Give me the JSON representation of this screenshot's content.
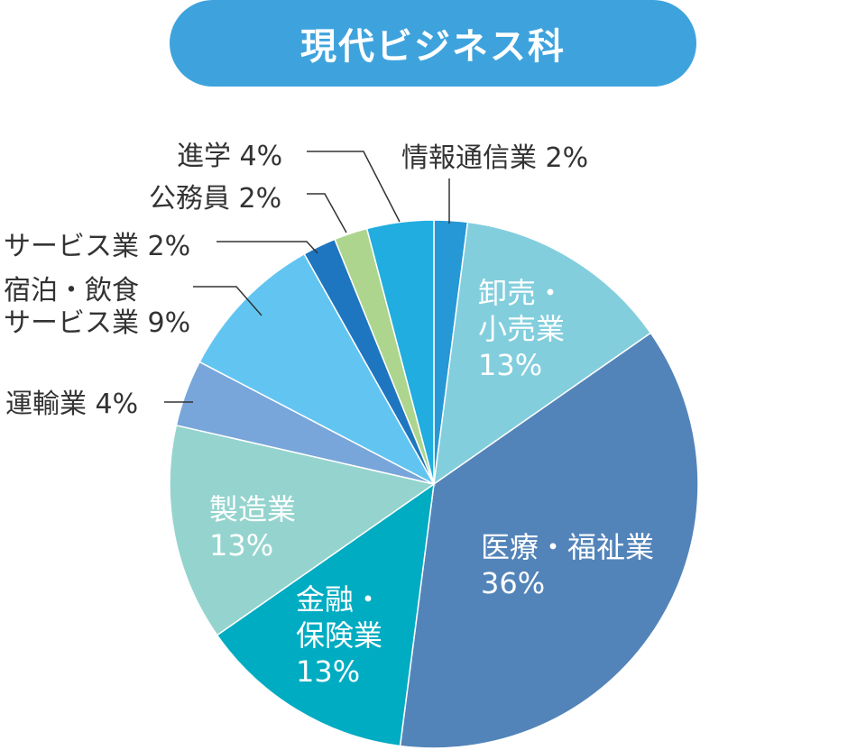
{
  "chart_data": {
    "type": "pie",
    "title": "現代ビジネス科",
    "start_angle_deg": 0,
    "direction": "clockwise",
    "slices": [
      {
        "label": "情報通信業",
        "value": 2,
        "display": "2%",
        "color": "#2698d6",
        "label_mode": "outside"
      },
      {
        "label": "卸売・小売業",
        "value": 13,
        "display": "13%",
        "color": "#82cedd",
        "label_mode": "inside"
      },
      {
        "label": "医療・福祉業",
        "value": 36,
        "display": "36%",
        "color": "#5384b9",
        "label_mode": "inside"
      },
      {
        "label": "金融・保険業",
        "value": 13,
        "display": "13%",
        "color": "#00acc2",
        "label_mode": "inside"
      },
      {
        "label": "製造業",
        "value": 13,
        "display": "13%",
        "color": "#95d4ce",
        "label_mode": "inside"
      },
      {
        "label": "運輸業",
        "value": 4,
        "display": "4%",
        "color": "#78a6da",
        "label_mode": "outside"
      },
      {
        "label": "宿泊・飲食サービス業",
        "value": 9,
        "display": "9%",
        "color": "#62c5f1",
        "label_mode": "outside"
      },
      {
        "label": "サービス業",
        "value": 2,
        "display": "2%",
        "color": "#1f76c0",
        "label_mode": "outside"
      },
      {
        "label": "公務員",
        "value": 2,
        "display": "2%",
        "color": "#add58e",
        "label_mode": "outside"
      },
      {
        "label": "進学",
        "value": 4,
        "display": "4%",
        "color": "#21ade0",
        "label_mode": "outside"
      }
    ],
    "inside_label_lines": {
      "卸売・小売業": [
        "卸売・",
        "小売業",
        "13%"
      ],
      "医療・福祉業": [
        "医療・福祉業",
        "36%"
      ],
      "金融・保険業": [
        "金融・",
        "保険業",
        "13%"
      ],
      "製造業": [
        "製造業",
        "13%"
      ]
    },
    "outside_label_lines": {
      "情報通信業": [
        "情報通信業 2%"
      ],
      "運輸業": [
        "運輸業 4%"
      ],
      "宿泊・飲食サービス業": [
        "宿泊・飲食",
        "サービス業 9%"
      ],
      "サービス業": [
        "サービス業 2%"
      ],
      "公務員": [
        "公務員 2%"
      ],
      "進学": [
        "進学 4%"
      ]
    },
    "colors": {
      "title_pill": "#3ea3dd",
      "title_text": "#ffffff",
      "inside_text": "#ffffff",
      "label_text": "#333333",
      "leader": "#333333"
    }
  }
}
